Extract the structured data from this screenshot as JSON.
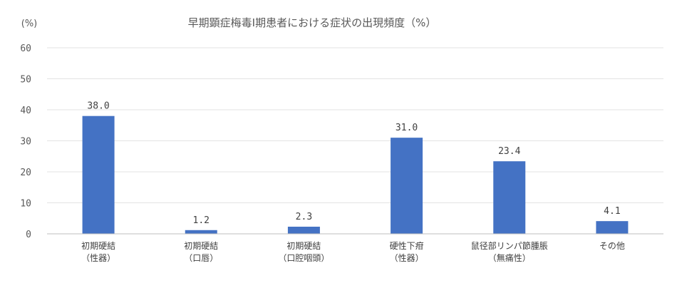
{
  "chart_data": {
    "type": "bar",
    "title": "早期顕症梅毒Ⅰ期患者における症状の出現頻度（%）",
    "ylabel": "(%)",
    "ylim": [
      0,
      60
    ],
    "yticks": [
      "0",
      "10",
      "20",
      "30",
      "40",
      "50",
      "60"
    ],
    "ytick_values": [
      0,
      10,
      20,
      30,
      40,
      50,
      60
    ],
    "categories": [
      [
        "初期硬結",
        "（性器）"
      ],
      [
        "初期硬結",
        "（口唇）"
      ],
      [
        "初期硬結",
        "（口腔咽頭）"
      ],
      [
        "硬性下疳",
        "（性器）"
      ],
      [
        "鼠径部リンパ節腫脹",
        "（無痛性）"
      ],
      [
        "その他"
      ]
    ],
    "values": [
      38.0,
      1.2,
      2.3,
      31.0,
      23.4,
      4.1
    ],
    "data_labels": [
      "38.0",
      "1.2",
      "2.3",
      "31.0",
      "23.4",
      "4.1"
    ],
    "bar_color": "#4472c4",
    "grid": true,
    "legend": "none"
  }
}
